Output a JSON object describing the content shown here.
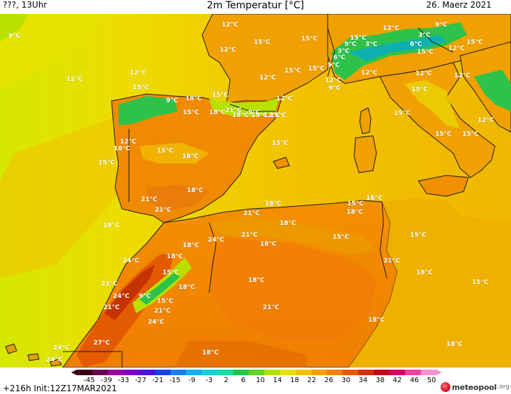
{
  "header": {
    "left": "???, 13Uhr",
    "title": "2m Temperatur [°C]",
    "right": "26. Maerz 2021"
  },
  "map": {
    "colors": {
      "sea_warm": "#f2c000",
      "sea_yellow": "#eedc00",
      "sea_west": "#d6e800",
      "land_orange": "#f08a00",
      "land_hot": "#e35a00",
      "land_hottest": "#c43200",
      "mountain_green": "#2ec24a",
      "coast": "#1a1a1a"
    },
    "labels": [
      {
        "t": "9°C"
      },
      {
        "t": "12°C"
      },
      {
        "t": "12°C"
      },
      {
        "t": "15°C"
      },
      {
        "t": "15°C"
      },
      {
        "t": "12°C"
      },
      {
        "t": "9°C"
      },
      {
        "t": "15°C"
      },
      {
        "t": "3°C"
      },
      {
        "t": "3°C"
      },
      {
        "t": "6°C"
      },
      {
        "t": "3°C"
      },
      {
        "t": "9°C"
      },
      {
        "t": "6°C"
      },
      {
        "t": "15°C"
      },
      {
        "t": "12°C"
      },
      {
        "t": "15°C"
      },
      {
        "t": "12°C"
      },
      {
        "t": "12°C"
      },
      {
        "t": "15°C"
      },
      {
        "t": "15°C"
      },
      {
        "t": "15°C"
      },
      {
        "t": "12°C"
      },
      {
        "t": "12°C"
      },
      {
        "t": "12°C"
      },
      {
        "t": "12°C"
      },
      {
        "t": "9°C"
      },
      {
        "t": "18°C"
      },
      {
        "t": "15°C"
      },
      {
        "t": "21°C"
      },
      {
        "t": "18°C"
      },
      {
        "t": "15°C"
      },
      {
        "t": "18°C"
      },
      {
        "t": "15°C"
      },
      {
        "t": "12°C"
      },
      {
        "t": "9°C"
      },
      {
        "t": "12°C"
      },
      {
        "t": "15°C"
      },
      {
        "t": "9°C"
      },
      {
        "t": "12°C"
      },
      {
        "t": "9°C"
      },
      {
        "t": "12°C"
      },
      {
        "t": "15°C"
      },
      {
        "t": "15°C"
      },
      {
        "t": "15°C"
      },
      {
        "t": "15°C"
      },
      {
        "t": "15°C"
      },
      {
        "t": "12°C"
      },
      {
        "t": "18°C"
      },
      {
        "t": "15°C"
      },
      {
        "t": "18°C"
      },
      {
        "t": "15°C"
      },
      {
        "t": "18°C"
      },
      {
        "t": "21°C"
      },
      {
        "t": "21°C"
      },
      {
        "t": "18°C"
      },
      {
        "t": "15°C"
      },
      {
        "t": "18°C"
      },
      {
        "t": "18°C"
      },
      {
        "t": "21°C"
      },
      {
        "t": "18°C"
      },
      {
        "t": "18°C"
      },
      {
        "t": "24°C"
      },
      {
        "t": "21°C"
      },
      {
        "t": "18°C"
      },
      {
        "t": "15°C"
      },
      {
        "t": "15°C"
      },
      {
        "t": "18°C"
      },
      {
        "t": "24°C"
      },
      {
        "t": "18°C"
      },
      {
        "t": "15°C"
      },
      {
        "t": "21°C"
      },
      {
        "t": "18°C"
      },
      {
        "t": "18°C"
      },
      {
        "t": "18°C"
      },
      {
        "t": "15°C"
      },
      {
        "t": "24°C"
      },
      {
        "t": "9°C"
      },
      {
        "t": "15°C"
      },
      {
        "t": "21°C"
      },
      {
        "t": "21°C"
      },
      {
        "t": "24°C"
      },
      {
        "t": "21°C"
      },
      {
        "t": "21°C"
      },
      {
        "t": "18°C"
      },
      {
        "t": "18°C"
      },
      {
        "t": "27°C"
      },
      {
        "t": "24°C"
      },
      {
        "t": "24°C"
      },
      {
        "t": "18°C"
      }
    ]
  },
  "legend": {
    "ticks": [
      "-45",
      "-39",
      "-33",
      "-27",
      "-21",
      "-15",
      "-9",
      "-3",
      "2",
      "6",
      "10",
      "14",
      "18",
      "22",
      "26",
      "30",
      "34",
      "38",
      "42",
      "46",
      "50"
    ],
    "colors": [
      "#3a0018",
      "#6a0050",
      "#9a00a0",
      "#7a00d0",
      "#4a10e0",
      "#1a40e8",
      "#1a80f0",
      "#10b0f0",
      "#10d0d8",
      "#10e0a0",
      "#20c840",
      "#60d820",
      "#b0e000",
      "#e8e000",
      "#f6c000",
      "#f5a000",
      "#f08000",
      "#e85800",
      "#d83000",
      "#c80018",
      "#d80060",
      "#f040a0",
      "#f890d0"
    ],
    "run_info": "+216h Init:12Z17MAR2021",
    "brand_name": "meteopool",
    "brand_tld": ".org"
  }
}
